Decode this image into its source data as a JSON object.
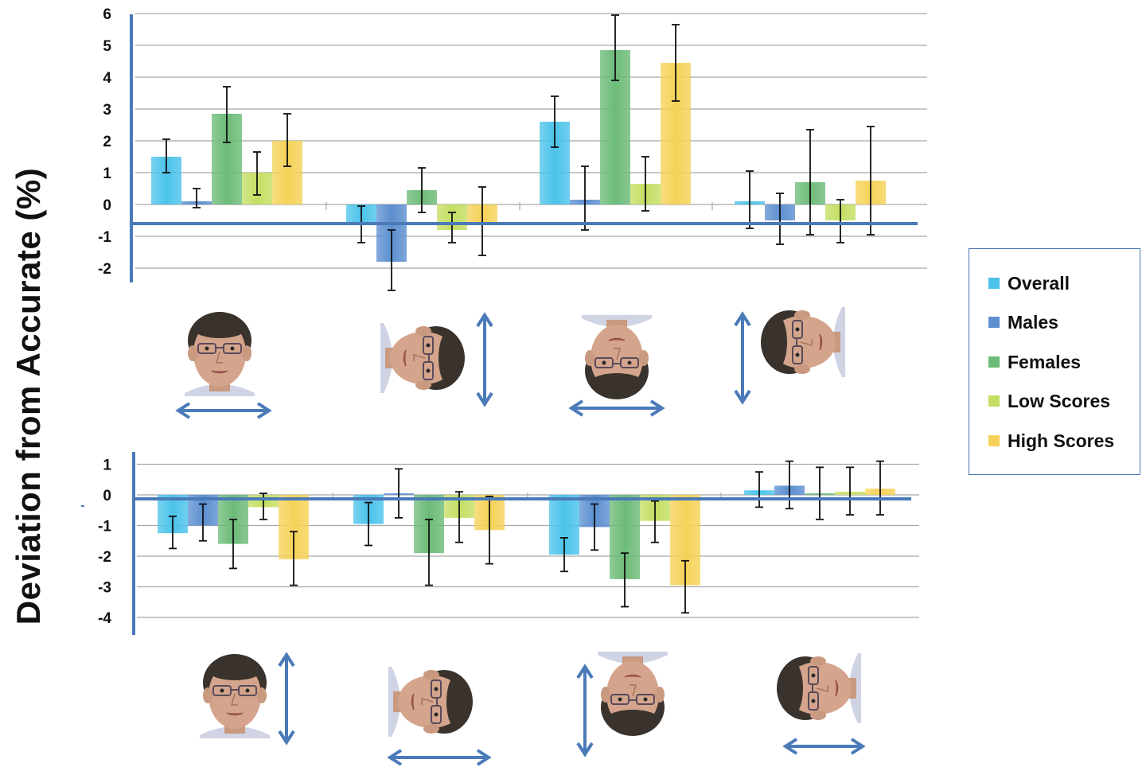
{
  "y_axis_label": "Deviation from Accurate (%)",
  "legend": {
    "items": [
      {
        "label": "Overall",
        "color": "#4bc3ea"
      },
      {
        "label": "Males",
        "color": "#5b8fd0"
      },
      {
        "label": "Females",
        "color": "#6cbb78"
      },
      {
        "label": "Low Scores",
        "color": "#c4de62"
      },
      {
        "label": "High Scores",
        "color": "#f5d257"
      }
    ]
  },
  "chart_data": [
    {
      "type": "bar",
      "series_names": [
        "Overall",
        "Males",
        "Females",
        "Low Scores",
        "High Scores"
      ],
      "ylim": [
        -2.5,
        6
      ],
      "yticks": [
        "6",
        "5",
        "4",
        "3",
        "2",
        "1",
        "0",
        "-1",
        "-2"
      ],
      "grid": true,
      "groups": [
        {
          "face_orientation": "upright",
          "arrow": "horizontal",
          "values": [
            1.5,
            0.1,
            2.85,
            1.0,
            2.0
          ],
          "errors": [
            [
              1.0,
              2.05
            ],
            [
              -0.1,
              0.5
            ],
            [
              1.95,
              3.7
            ],
            [
              0.3,
              1.65
            ],
            [
              1.2,
              2.85
            ]
          ]
        },
        {
          "face_orientation": "rotated",
          "arrow": "vertical",
          "values": [
            -0.6,
            -1.8,
            0.45,
            -0.8,
            -0.55
          ],
          "errors": [
            [
              -1.2,
              -0.05
            ],
            [
              -2.7,
              -0.8
            ],
            [
              -0.25,
              1.15
            ],
            [
              -1.2,
              -0.25
            ],
            [
              -1.6,
              0.55
            ]
          ]
        },
        {
          "face_orientation": "inverted",
          "arrow": "horizontal",
          "values": [
            2.6,
            0.15,
            4.85,
            0.65,
            4.45
          ],
          "errors": [
            [
              1.8,
              3.4
            ],
            [
              -0.8,
              1.2
            ],
            [
              3.9,
              5.95
            ],
            [
              -0.2,
              1.5
            ],
            [
              3.25,
              5.65
            ]
          ]
        },
        {
          "face_orientation": "rotated",
          "arrow": "vertical",
          "values": [
            0.1,
            -0.5,
            0.7,
            -0.5,
            0.75
          ],
          "errors": [
            [
              -0.75,
              1.05
            ],
            [
              -1.25,
              0.35
            ],
            [
              -0.95,
              2.35
            ],
            [
              -1.2,
              0.15
            ],
            [
              -0.95,
              2.45
            ]
          ]
        }
      ]
    },
    {
      "type": "bar",
      "series_names": [
        "Overall",
        "Males",
        "Females",
        "Low Scores",
        "High Scores"
      ],
      "ylim": [
        -4.5,
        1.5
      ],
      "yticks": [
        "1",
        "0",
        "-1",
        "-2",
        "-3",
        "-4"
      ],
      "grid": true,
      "groups": [
        {
          "face_orientation": "upright",
          "arrow": "vertical",
          "values": [
            -1.25,
            -1.0,
            -1.6,
            -0.4,
            -2.1
          ],
          "errors": [
            [
              -1.75,
              -0.7
            ],
            [
              -1.5,
              -0.3
            ],
            [
              -2.4,
              -0.8
            ],
            [
              -0.8,
              0.05
            ],
            [
              -2.95,
              -1.2
            ]
          ]
        },
        {
          "face_orientation": "rotated",
          "arrow": "horizontal",
          "values": [
            -0.95,
            0.05,
            -1.9,
            -0.75,
            -1.15
          ],
          "errors": [
            [
              -1.65,
              -0.25
            ],
            [
              -0.75,
              0.85
            ],
            [
              -2.95,
              -0.8
            ],
            [
              -1.55,
              0.1
            ],
            [
              -2.25,
              -0.05
            ]
          ]
        },
        {
          "face_orientation": "inverted",
          "arrow": "vertical",
          "values": [
            -1.95,
            -1.05,
            -2.75,
            -0.85,
            -2.95
          ],
          "errors": [
            [
              -2.5,
              -1.4
            ],
            [
              -1.8,
              -0.3
            ],
            [
              -3.65,
              -1.9
            ],
            [
              -1.55,
              -0.2
            ],
            [
              -3.85,
              -2.15
            ]
          ]
        },
        {
          "face_orientation": "rotated",
          "arrow": "horizontal",
          "values": [
            0.15,
            0.3,
            0.05,
            0.1,
            0.2
          ],
          "errors": [
            [
              -0.4,
              0.75
            ],
            [
              -0.45,
              1.1
            ],
            [
              -0.8,
              0.9
            ],
            [
              -0.65,
              0.9
            ],
            [
              -0.65,
              1.1
            ]
          ]
        }
      ]
    }
  ]
}
